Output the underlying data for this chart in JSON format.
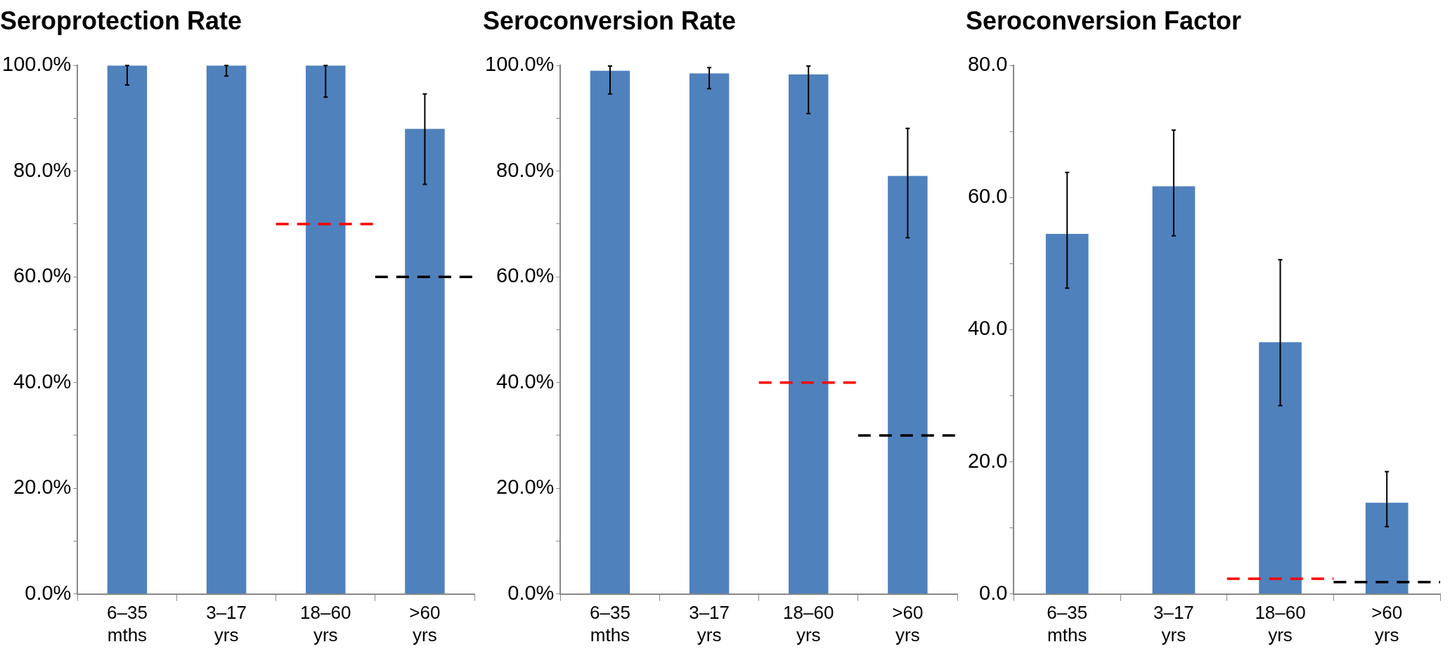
{
  "chart_data": [
    {
      "type": "bar",
      "title": "Seroprotection Rate",
      "categories": [
        "6–35 mths",
        "3–17 yrs",
        "18–60 yrs",
        ">60 yrs"
      ],
      "values": [
        100,
        100,
        100,
        88
      ],
      "color": "#4f81bd",
      "errors": [
        [
          96.3,
          100
        ],
        [
          98,
          100
        ],
        [
          94,
          100
        ],
        [
          77.5,
          94.6
        ]
      ],
      "ylim": [
        0,
        100
      ],
      "yticks": [
        {
          "value": 0,
          "label": "0.0%"
        },
        {
          "value": 10,
          "label": null
        },
        {
          "value": 20,
          "label": "20.0%"
        },
        {
          "value": 30,
          "label": null
        },
        {
          "value": 40,
          "label": "40.0%"
        },
        {
          "value": 50,
          "label": null
        },
        {
          "value": 60,
          "label": "60.0%"
        },
        {
          "value": 70,
          "label": null
        },
        {
          "value": 80,
          "label": "80.0%"
        },
        {
          "value": 90,
          "label": null
        },
        {
          "value": 100,
          "label": "100.0%"
        }
      ],
      "ref_lines": [
        {
          "axis": "y",
          "value": 70,
          "color": "#ff0000",
          "line_style": "dashed"
        },
        {
          "axis": "y",
          "value": 60,
          "color": "#000000",
          "line_style": "dashed"
        }
      ]
    },
    {
      "type": "bar",
      "title": "Seroconversion Rate",
      "categories": [
        "6–35 mths",
        "3–17 yrs",
        "18–60 yrs",
        ">60 yrs"
      ],
      "values": [
        99,
        98.5,
        98.3,
        79.1
      ],
      "color": "#4f81bd",
      "errors": [
        [
          94.6,
          99.9
        ],
        [
          95.6,
          99.6
        ],
        [
          90.9,
          99.9
        ],
        [
          67.4,
          88.1
        ]
      ],
      "ylim": [
        0,
        100
      ],
      "yticks": [
        {
          "value": 0,
          "label": "0.0%"
        },
        {
          "value": 10,
          "label": null
        },
        {
          "value": 20,
          "label": "20.0%"
        },
        {
          "value": 30,
          "label": null
        },
        {
          "value": 40,
          "label": "40.0%"
        },
        {
          "value": 50,
          "label": null
        },
        {
          "value": 60,
          "label": "60.0%"
        },
        {
          "value": 70,
          "label": null
        },
        {
          "value": 80,
          "label": "80.0%"
        },
        {
          "value": 90,
          "label": null
        },
        {
          "value": 100,
          "label": "100.0%"
        }
      ],
      "ref_lines": [
        {
          "axis": "y",
          "value": 40,
          "color": "#ff0000",
          "line_style": "dashed"
        },
        {
          "axis": "y",
          "value": 30,
          "color": "#000000",
          "line_style": "dashed"
        }
      ]
    },
    {
      "type": "bar",
      "title": "Seroconversion Factor",
      "categories": [
        "6–35 mths",
        "3–17 yrs",
        "18–60 yrs",
        ">60 yrs"
      ],
      "values": [
        54.5,
        61.7,
        38.1,
        13.8
      ],
      "color": "#4f81bd",
      "errors": [
        [
          46.3,
          63.8
        ],
        [
          54.2,
          70.2
        ],
        [
          28.5,
          50.6
        ],
        [
          10.2,
          18.5
        ]
      ],
      "ylim": [
        0,
        80
      ],
      "yticks": [
        {
          "value": 0,
          "label": "0.0"
        },
        {
          "value": 10,
          "label": null
        },
        {
          "value": 20,
          "label": "20.0"
        },
        {
          "value": 30,
          "label": null
        },
        {
          "value": 40,
          "label": "40.0"
        },
        {
          "value": 50,
          "label": null
        },
        {
          "value": 60,
          "label": "60.0"
        },
        {
          "value": 70,
          "label": null
        },
        {
          "value": 80,
          "label": "80.0"
        }
      ],
      "ref_lines": [
        {
          "axis": "y",
          "value": 2.3,
          "color": "#ff0000",
          "line_style": "dashed"
        },
        {
          "axis": "y",
          "value": 1.8,
          "color": "#000000",
          "line_style": "dashed"
        }
      ]
    }
  ]
}
